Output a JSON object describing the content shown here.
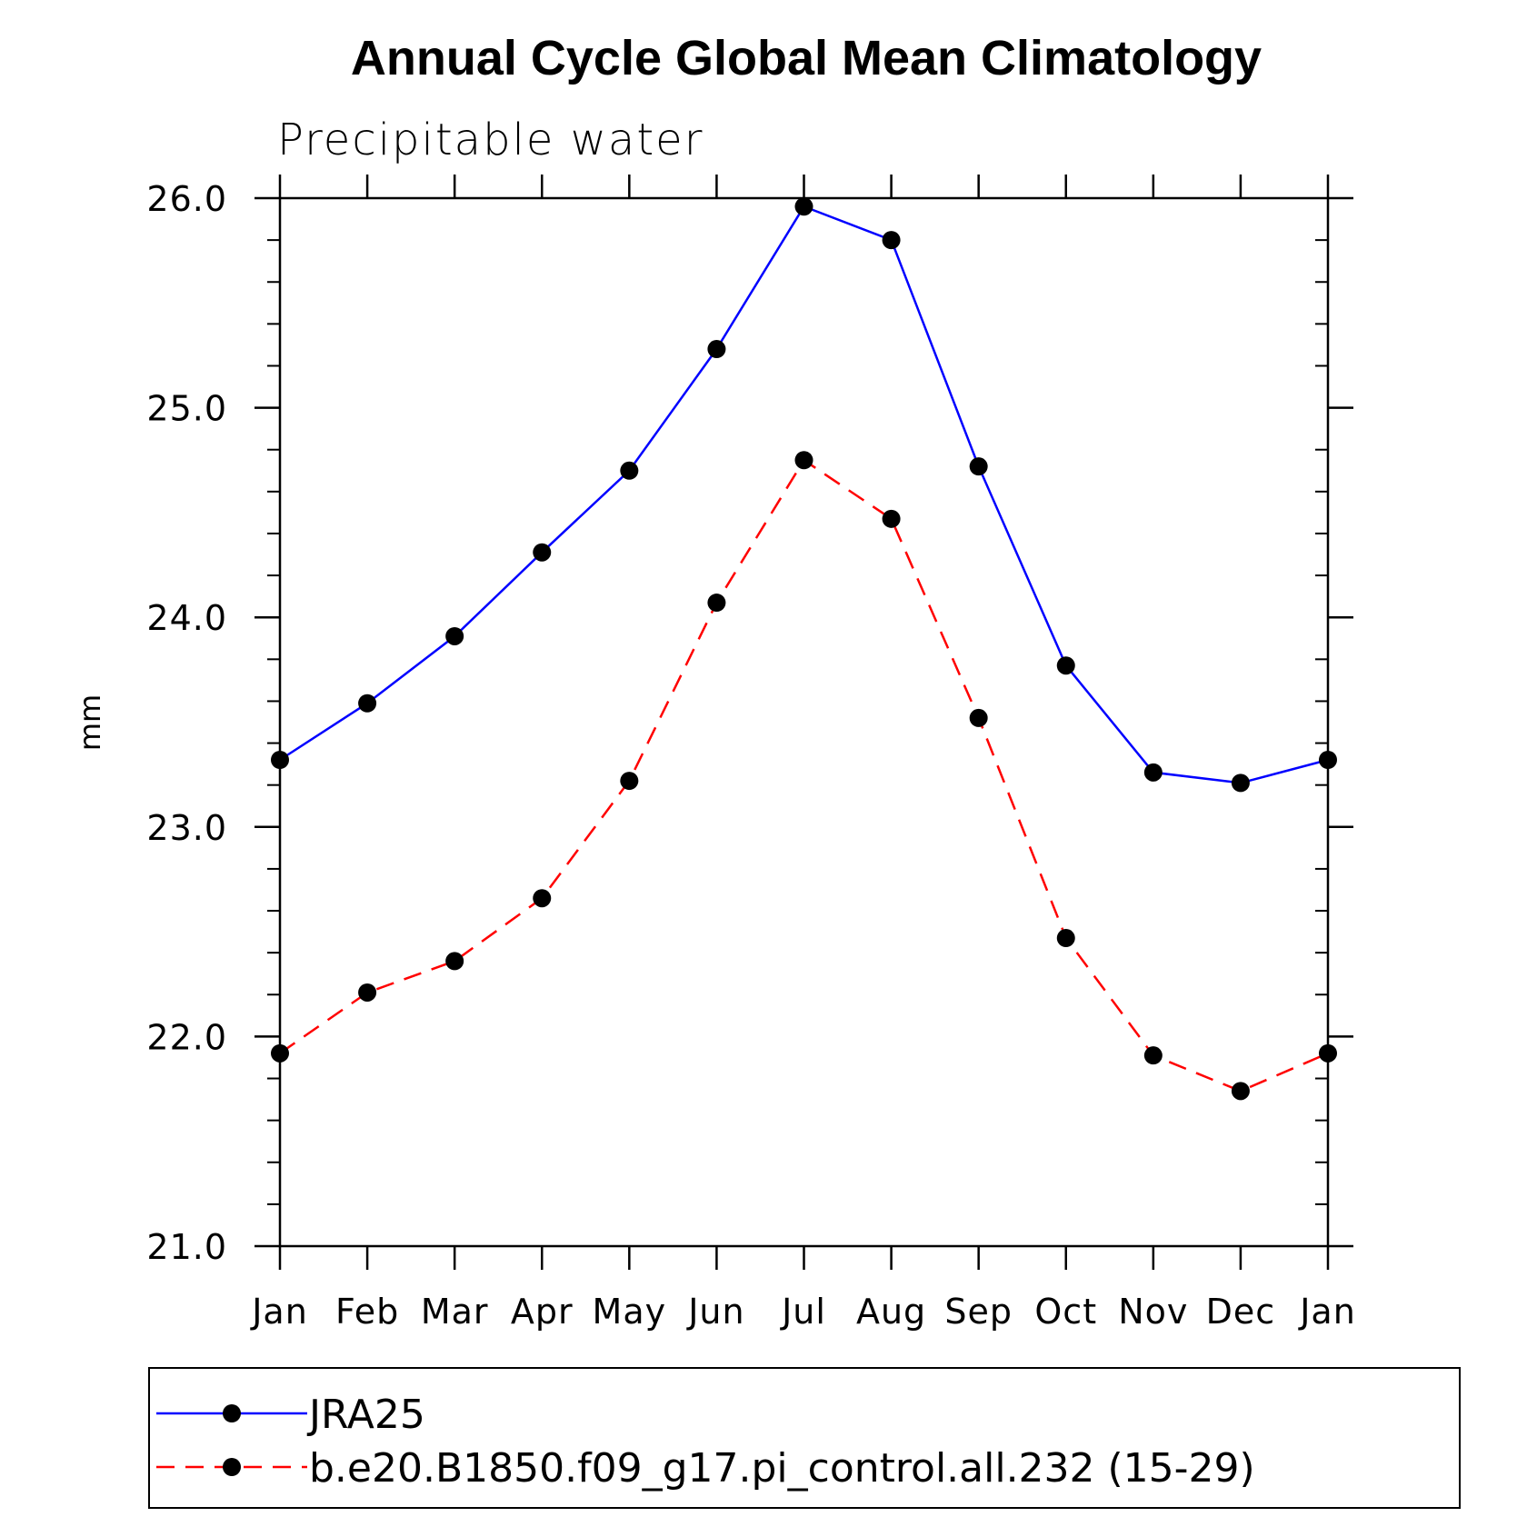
{
  "chart_data": {
    "type": "line",
    "title": "Annual Cycle Global Mean Climatology",
    "subtitle": "Precipitable water",
    "xlabel": "",
    "ylabel": "mm",
    "categories": [
      "Jan",
      "Feb",
      "Mar",
      "Apr",
      "May",
      "Jun",
      "Jul",
      "Aug",
      "Sep",
      "Oct",
      "Nov",
      "Dec",
      "Jan"
    ],
    "ylim": [
      21.0,
      26.0
    ],
    "yticks": [
      21.0,
      22.0,
      23.0,
      24.0,
      25.0,
      26.0
    ],
    "ytick_labels": [
      "21.0",
      "22.0",
      "23.0",
      "24.0",
      "25.0",
      "26.0"
    ],
    "minor_ytick_step": 0.2,
    "grid": false,
    "legend_position": "bottom",
    "series": [
      {
        "name": "JRA25",
        "color": "#0000ff",
        "line_style": "solid",
        "marker": "filled-circle",
        "values": [
          23.32,
          23.59,
          23.91,
          24.31,
          24.7,
          25.28,
          25.96,
          25.8,
          24.72,
          23.77,
          23.26,
          23.21,
          23.32
        ]
      },
      {
        "name": "b.e20.B1850.f09_g17.pi_control.all.232 (15-29)",
        "color": "#ff0000",
        "line_style": "dashed",
        "marker": "filled-circle",
        "values": [
          21.92,
          22.21,
          22.36,
          22.66,
          23.22,
          24.07,
          24.75,
          24.47,
          23.52,
          22.47,
          21.91,
          21.74,
          21.92
        ]
      }
    ]
  }
}
